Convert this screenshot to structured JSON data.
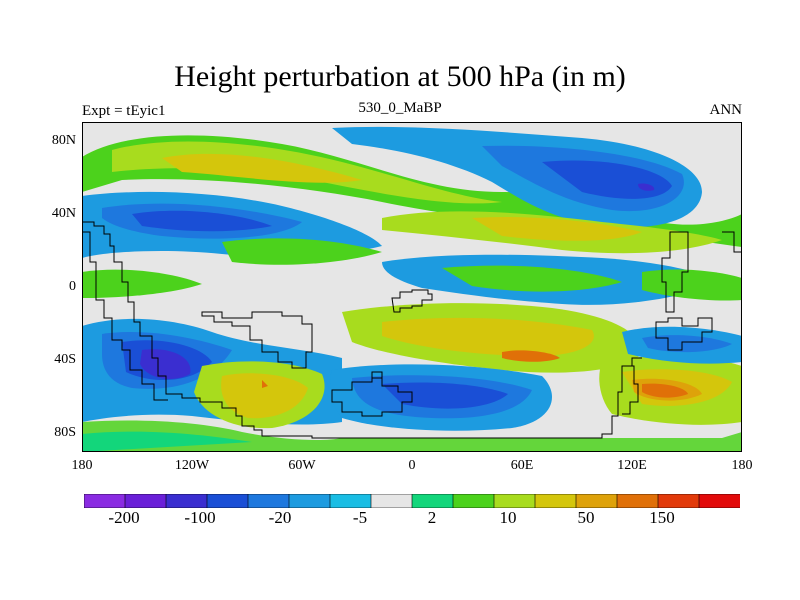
{
  "title": "Height perturbation at 500 hPa (in m)",
  "left_label": "Expt = tEyic1",
  "center_label": "530_0_MaBP",
  "right_label": "ANN",
  "map": {
    "lat_ticks": [
      "80N",
      "40N",
      "0",
      "40S",
      "80S"
    ],
    "lon_ticks": [
      "180",
      "120W",
      "60W",
      "0",
      "60E",
      "120E",
      "180"
    ]
  },
  "colorbar": {
    "colors": [
      "#8A2BE2",
      "#6A1FD8",
      "#3A2ED0",
      "#1A4FD6",
      "#1E78DE",
      "#1D9BE0",
      "#19BDE4",
      "#E6E6E6",
      "#13D67B",
      "#4CD21C",
      "#A8DC1E",
      "#D4C60C",
      "#DEA20A",
      "#E07008",
      "#E23A0A",
      "#E20A0A"
    ],
    "labels": [
      "-200",
      "-100",
      "-20",
      "-5",
      "2",
      "10",
      "50",
      "150"
    ]
  }
}
